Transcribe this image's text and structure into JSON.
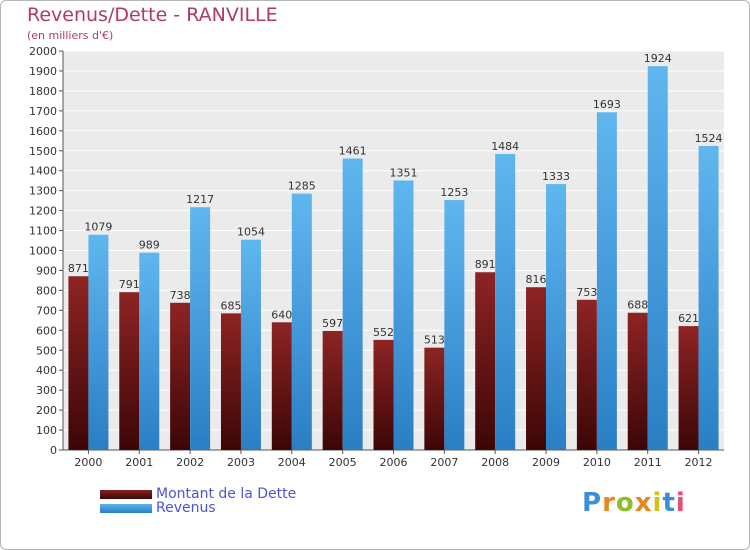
{
  "title": "Revenus/Dette - RANVILLE",
  "subtitle": "(en milliers d'€)",
  "colors": {
    "debt": "#7a1a1a",
    "revenue": "#4aa3e0",
    "title": "#b23a5e",
    "legend_text": "#4a55d6"
  },
  "chart_data": {
    "type": "bar",
    "categories": [
      "2000",
      "2001",
      "2002",
      "2003",
      "2004",
      "2005",
      "2006",
      "2007",
      "2008",
      "2009",
      "2010",
      "2011",
      "2012"
    ],
    "series": [
      {
        "name": "Montant de la Dette",
        "values": [
          871,
          791,
          738,
          685,
          640,
          597,
          552,
          513,
          891,
          816,
          753,
          688,
          621
        ]
      },
      {
        "name": "Revenus",
        "values": [
          1079,
          989,
          1217,
          1054,
          1285,
          1461,
          1351,
          1253,
          1484,
          1333,
          1693,
          1924,
          1524
        ]
      }
    ],
    "ylim": [
      0,
      2000
    ],
    "ytick_step": 100,
    "grid": true,
    "legend_position": "bottom-left"
  },
  "legend": {
    "debt_label": "Montant de la Dette",
    "revenue_label": "Revenus"
  },
  "logo": {
    "letters": [
      "P",
      "r",
      "o",
      "x",
      "i",
      "t",
      "i"
    ],
    "colors": [
      "#3a8fd6",
      "#e8871e",
      "#8cbf26",
      "#e8871e",
      "#d4c21a",
      "#3a8fd6",
      "#e84a7a"
    ]
  }
}
